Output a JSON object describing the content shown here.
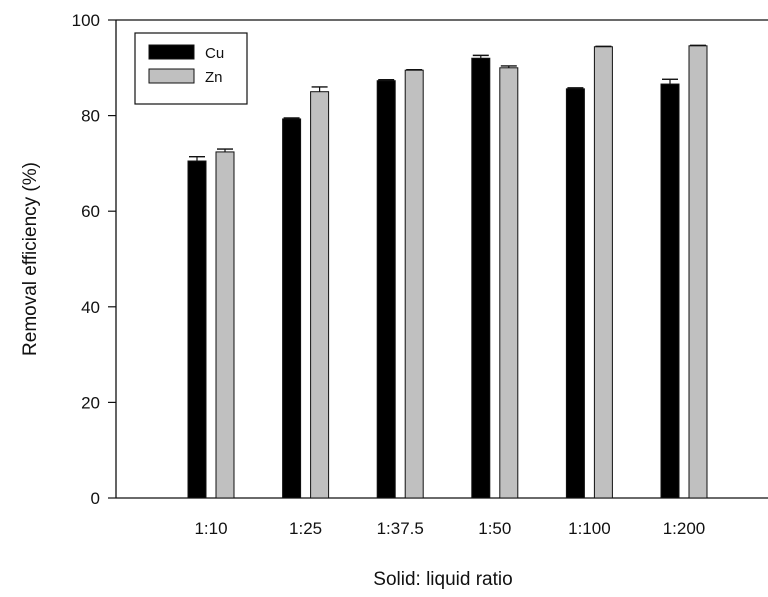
{
  "chart_data": {
    "type": "bar",
    "xlabel": "Solid: liquid ratio",
    "ylabel": "Removal efficiency (%)",
    "ylim": [
      0,
      100
    ],
    "yticks": [
      0,
      20,
      40,
      60,
      80,
      100
    ],
    "categories": [
      "1:10",
      "1:25",
      "1:37.5",
      "1:50",
      "1:100",
      "1:200"
    ],
    "series": [
      {
        "name": "Cu",
        "color": "#000000",
        "values": [
          70.5,
          79.3,
          87.3,
          92.0,
          85.6,
          86.6
        ],
        "errors": [
          0.9,
          0.2,
          0.2,
          0.6,
          0.2,
          1.0
        ]
      },
      {
        "name": "Zn",
        "color": "#c0c0c0",
        "values": [
          72.4,
          85.0,
          89.5,
          90.0,
          94.4,
          94.6
        ],
        "errors": [
          0.6,
          1.0,
          0.1,
          0.4,
          0.1,
          0.1
        ]
      }
    ],
    "legend": "top-left",
    "grid": false
  }
}
